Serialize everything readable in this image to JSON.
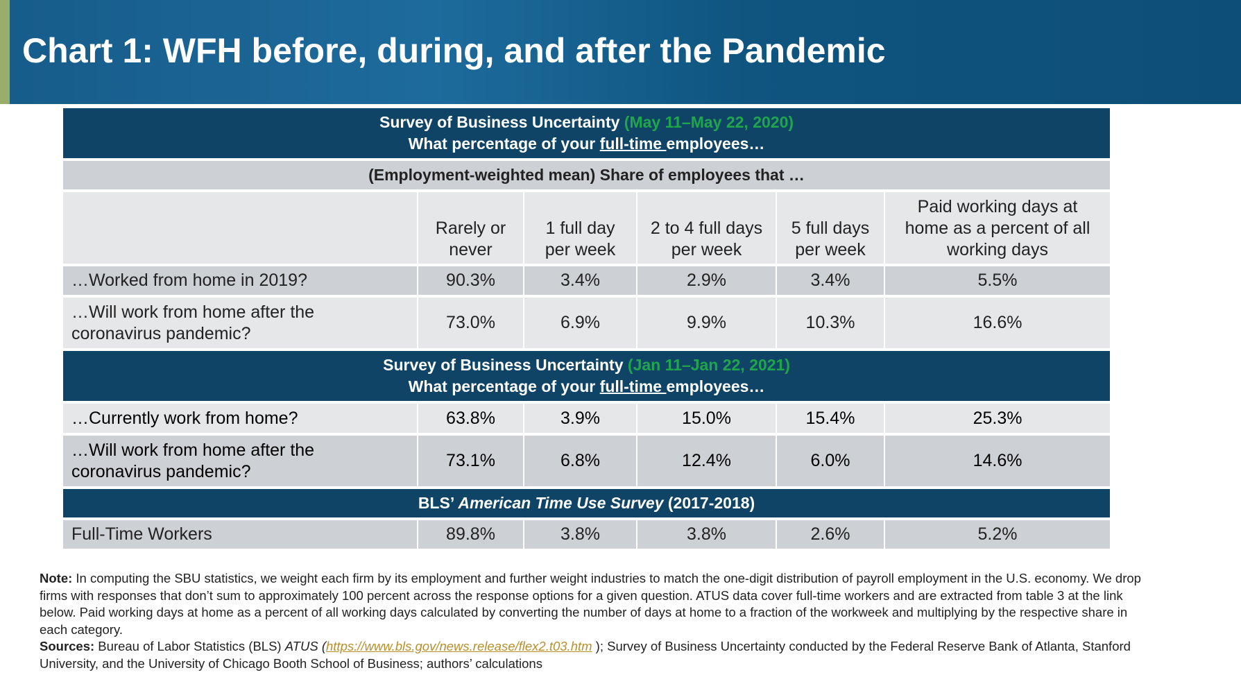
{
  "title": "Chart 1: WFH before, during, and after the Pandemic",
  "colors": {
    "header": "#0f4466",
    "accent_green": "#1fa64c",
    "link": "#b8902a",
    "side_strip": "#9aae6c"
  },
  "table": {
    "section1": {
      "title": "Survey of Business Uncertainty",
      "dates": "(May 11–May 22, 2020)",
      "question_pre": "What percentage of your ",
      "question_ul": "full-time ",
      "question_post": "employees…"
    },
    "subheader": "(Employment-weighted mean) Share of employees that …",
    "columns": [
      "",
      "Rarely or never",
      "1 full day per week",
      "2 to 4 full days per week",
      "5 full days per week",
      "Paid working days at home as a percent of all working days"
    ],
    "rows1": [
      {
        "label": "…Worked from home in 2019?",
        "values": [
          "90.3%",
          "3.4%",
          "2.9%",
          "3.4%",
          "5.5%"
        ]
      },
      {
        "label": "…Will work from home after the coronavirus pandemic?",
        "values": [
          "73.0%",
          "6.9%",
          "9.9%",
          "10.3%",
          "16.6%"
        ]
      }
    ],
    "section2": {
      "title": "Survey of Business Uncertainty",
      "dates": "(Jan 11–Jan 22, 2021)",
      "question_pre": "What percentage of your ",
      "question_ul": "full-time ",
      "question_post": "employees…"
    },
    "rows2": [
      {
        "label": "…Currently work from home?",
        "values": [
          "63.8%",
          "3.9%",
          "15.0%",
          "15.4%",
          "25.3%"
        ]
      },
      {
        "label": "…Will work from home after the coronavirus pandemic?",
        "values": [
          "73.1%",
          "6.8%",
          "12.4%",
          "6.0%",
          "14.6%"
        ]
      }
    ],
    "section3": {
      "pre": "BLS’ ",
      "italic": "American Time Use Survey",
      "post": " (2017-2018)"
    },
    "rows3": [
      {
        "label": "Full-Time Workers",
        "values": [
          "89.8%",
          "3.8%",
          "3.8%",
          "2.6%",
          "5.2%"
        ]
      }
    ]
  },
  "notes": {
    "note_label": "Note:",
    "note_text": " In computing the SBU statistics, we weight each firm by its employment and further weight industries to match the one-digit distribution of payroll employment in the U.S. economy. We drop firms with responses that don’t sum to approximately 100 percent across the response options for a given question. ATUS data cover full-time workers and are extracted from table 3 at the link below. Paid working days at home as a percent of all working days calculated by converting the number of days at home to a fraction of the workweek and multiplying by the respective share in each category.",
    "sources_label": "Sources:",
    "sources_pre": " Bureau of Labor Statistics (BLS) ",
    "atus": "ATUS (",
    "link": "https://www.bls.gov/news.release/flex2.t03.htm",
    "sources_post": " ); Survey of Business Uncertainty conducted by the Federal Reserve Bank of Atlanta, Stanford University, and the University of Chicago Booth School of Business; authors’ calculations"
  }
}
